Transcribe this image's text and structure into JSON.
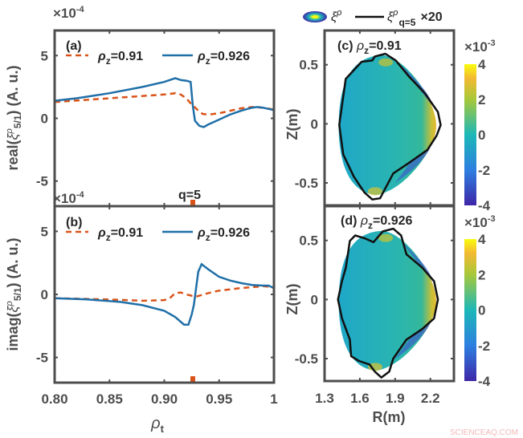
{
  "chart_data": [
    {
      "type": "line",
      "panel": "(a)",
      "ylabel_pre": "real(",
      "ylabel_sym": "ξ",
      "ylabel_sup": "ρ",
      "ylabel_sub": "5/1",
      "ylabel_post": ") (A. u.)",
      "multiplier": "×10",
      "multiplier_exp": "-4",
      "xlim": [
        0.8,
        1.0
      ],
      "ylim": [
        -7,
        7
      ],
      "yticks": [
        5,
        0,
        -5
      ],
      "ytick_labels": [
        "5",
        "0",
        "-5"
      ],
      "annotation": "q=5",
      "annotation_x": 0.926,
      "series": [
        {
          "name": "ρz=0.91",
          "sym": "ρ",
          "sub": "z",
          "val": "=0.91",
          "style": "dashed",
          "color": "#d95319",
          "x": [
            0.8,
            0.85,
            0.9,
            0.91,
            0.915,
            0.92,
            0.925,
            0.93,
            0.935,
            0.94,
            0.95,
            0.96,
            0.97,
            0.98,
            0.99,
            1.0
          ],
          "y": [
            1.3,
            1.6,
            1.9,
            2.0,
            1.9,
            1.6,
            1.1,
            0.7,
            0.35,
            0.3,
            0.4,
            0.6,
            0.8,
            0.9,
            0.85,
            0.7
          ]
        },
        {
          "name": "ρz=0.926",
          "sym": "ρ",
          "sub": "z",
          "val": "=0.926",
          "style": "solid",
          "color": "#1f6fa8",
          "x": [
            0.8,
            0.82,
            0.85,
            0.88,
            0.9,
            0.91,
            0.915,
            0.92,
            0.924,
            0.926,
            0.928,
            0.932,
            0.936,
            0.94,
            0.95,
            0.96,
            0.97,
            0.98,
            0.985,
            0.99,
            1.0
          ],
          "y": [
            1.4,
            1.6,
            2.0,
            2.5,
            2.9,
            3.2,
            3.05,
            3.0,
            2.9,
            1.0,
            -0.2,
            -0.6,
            -0.7,
            -0.5,
            -0.1,
            0.3,
            0.6,
            0.85,
            0.9,
            0.85,
            0.65
          ]
        }
      ]
    },
    {
      "type": "line",
      "panel": "(b)",
      "ylabel_pre": "imag(",
      "ylabel_sym": "ξ",
      "ylabel_sup": "ρ",
      "ylabel_sub": "5/1",
      "ylabel_post": ") (A. u.)",
      "multiplier": "×10",
      "multiplier_exp": "-4",
      "xlabel_sym": "ρ",
      "xlabel_sub": "t",
      "xlim": [
        0.8,
        1.0
      ],
      "ylim": [
        -7,
        7
      ],
      "xticks": [
        0.8,
        0.85,
        0.9,
        0.95,
        1.0
      ],
      "xtick_labels": [
        "0.80",
        "0.85",
        "0.90",
        "0.95",
        "1"
      ],
      "yticks": [
        5,
        0,
        -5
      ],
      "ytick_labels": [
        "5",
        "0",
        "-5"
      ],
      "annotation_x": 0.926,
      "series": [
        {
          "name": "ρz=0.91",
          "sym": "ρ",
          "sub": "z",
          "val": "=0.91",
          "style": "dashed",
          "color": "#d95319",
          "x": [
            0.8,
            0.85,
            0.88,
            0.9,
            0.905,
            0.91,
            0.915,
            0.92,
            0.925,
            0.93,
            0.94,
            0.95,
            0.97,
            0.99,
            1.0
          ],
          "y": [
            -0.3,
            -0.4,
            -0.5,
            -0.45,
            -0.3,
            0.1,
            0.15,
            0.0,
            -0.1,
            -0.15,
            0.1,
            0.3,
            0.5,
            0.65,
            0.6
          ]
        },
        {
          "name": "ρz=0.926",
          "sym": "ρ",
          "sub": "z",
          "val": "=0.926",
          "style": "solid",
          "color": "#1f6fa8",
          "x": [
            0.8,
            0.83,
            0.86,
            0.88,
            0.9,
            0.91,
            0.918,
            0.922,
            0.925,
            0.927,
            0.929,
            0.931,
            0.934,
            0.94,
            0.95,
            0.96,
            0.97,
            0.98,
            0.99,
            0.995,
            1.0
          ],
          "y": [
            -0.3,
            -0.4,
            -0.6,
            -0.85,
            -1.3,
            -1.8,
            -2.4,
            -2.4,
            -1.6,
            -0.8,
            0.5,
            1.8,
            2.4,
            2.0,
            1.4,
            1.1,
            0.9,
            0.75,
            0.7,
            0.7,
            0.5
          ]
        }
      ]
    },
    {
      "type": "heatmap",
      "panel": "(c)",
      "title_pre": "(c) ",
      "title_sym": "ρ",
      "title_sub": "z",
      "title_val": "=0.91",
      "xlabel": "R(m)",
      "ylabel": "Z(m)",
      "xlim": [
        1.3,
        2.4
      ],
      "ylim": [
        -0.69,
        0.79
      ],
      "yticks": [
        0.5,
        0,
        -0.5
      ],
      "ytick_labels": [
        "0.5",
        "0",
        "-0.5"
      ],
      "colorbar": {
        "range": [
          -4,
          4
        ],
        "ticks": [
          4,
          2,
          0,
          -2,
          -4
        ],
        "tick_labels": [
          "4",
          "2",
          "0",
          "-2",
          "-4"
        ],
        "multiplier": "×10",
        "multiplier_exp": "-3"
      },
      "boundary": {
        "R": [
          1.425,
          1.48,
          1.615,
          1.705,
          1.727,
          1.817,
          1.906,
          2.018,
          2.152,
          2.264,
          2.287,
          2.253,
          2.175,
          2.018,
          1.884,
          1.772,
          1.705,
          1.638,
          1.548,
          1.459
        ],
        "Z": [
          -0.01,
          0.38,
          0.525,
          0.536,
          0.57,
          0.593,
          0.536,
          0.4,
          0.26,
          0.1,
          -0.01,
          -0.1,
          -0.22,
          -0.33,
          -0.42,
          -0.63,
          -0.64,
          -0.58,
          -0.445,
          -0.26
        ]
      }
    },
    {
      "type": "heatmap",
      "panel": "(d)",
      "title_pre": "(d) ",
      "title_sym": "ρ",
      "title_sub": "z",
      "title_val": "=0.926",
      "xlabel": "R(m)",
      "ylabel": "Z(m)",
      "xlim": [
        1.3,
        2.4
      ],
      "ylim": [
        -0.69,
        0.79
      ],
      "xticks": [
        1.3,
        1.6,
        1.9,
        2.2
      ],
      "xtick_labels": [
        "1.3",
        "1.6",
        "1.9",
        "2.2"
      ],
      "yticks": [
        0.5,
        0,
        -0.5
      ],
      "ytick_labels": [
        "0.5",
        "0",
        "-0.5"
      ],
      "colorbar": {
        "range": [
          -4,
          4
        ],
        "ticks": [
          4,
          2,
          0,
          -2,
          -4
        ],
        "tick_labels": [
          "4",
          "2",
          "0",
          "-2",
          "-4"
        ],
        "multiplier": "×10",
        "multiplier_exp": "-3"
      },
      "boundary": {
        "R": [
          1.414,
          1.448,
          1.481,
          1.515,
          1.56,
          1.638,
          1.716,
          1.795,
          1.884,
          1.951,
          1.996,
          2.13,
          2.231,
          2.264,
          2.231,
          2.13,
          1.996,
          1.884,
          1.85,
          1.783,
          1.727,
          1.683,
          1.593,
          1.526,
          1.515,
          1.448
        ],
        "Z": [
          0.0,
          0.156,
          0.27,
          0.497,
          0.542,
          0.519,
          0.485,
          0.576,
          0.599,
          0.542,
          0.383,
          0.27,
          0.156,
          0.0,
          -0.16,
          -0.25,
          -0.34,
          -0.5,
          -0.61,
          -0.66,
          -0.61,
          -0.55,
          -0.52,
          -0.48,
          -0.34,
          -0.16
        ]
      }
    }
  ],
  "legend_right": {
    "item1_sym": "ξ",
    "item1_sup": "ρ",
    "item2_sym": "ξ",
    "item2_sup": "ρ",
    "item2_sub": "q=5",
    "scale": "×20"
  },
  "colors": {
    "dashed": "#d95319",
    "solid": "#1f6fa8",
    "boundary": "#111111",
    "axis": "#4d4d4d"
  },
  "watermark": "SCIENCEAQ.COM"
}
